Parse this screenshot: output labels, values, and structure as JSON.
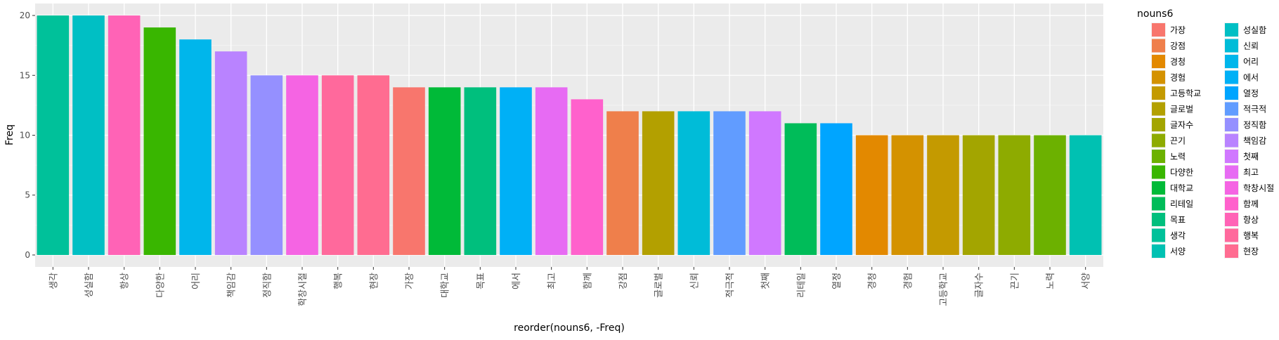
{
  "chart_data": {
    "type": "bar",
    "xlabel": "reorder(nouns6, -Freq)",
    "ylabel": "Freq",
    "ylim": [
      0,
      20
    ],
    "yticks": [
      0,
      5,
      10,
      15,
      20
    ],
    "grid": true,
    "legend_position": "right",
    "categories": [
      "생각",
      "성실함",
      "항상",
      "다양한",
      "어리",
      "책임감",
      "정직함",
      "학창시절",
      "행복",
      "현장",
      "가장",
      "대학교",
      "목표",
      "에서",
      "최고",
      "함께",
      "강점",
      "글로벌",
      "신뢰",
      "적극적",
      "첫째",
      "리테일",
      "열정",
      "경청",
      "경험",
      "고등학교",
      "글자수",
      "끈기",
      "노력",
      "서양"
    ],
    "values": [
      20,
      20,
      20,
      19,
      18,
      17,
      15,
      15,
      15,
      15,
      14,
      14,
      14,
      14,
      14,
      13,
      12,
      12,
      12,
      12,
      12,
      11,
      11,
      10,
      10,
      10,
      10,
      10,
      10,
      10
    ],
    "legend": {
      "title": "nouns6",
      "items": [
        {
          "label": "가장",
          "color": "#F8766D"
        },
        {
          "label": "강점",
          "color": "#EF7F4B"
        },
        {
          "label": "경청",
          "color": "#E38900"
        },
        {
          "label": "경험",
          "color": "#D49200"
        },
        {
          "label": "고등학교",
          "color": "#C49A00"
        },
        {
          "label": "글로벌",
          "color": "#B3A000"
        },
        {
          "label": "글자수",
          "color": "#A3A500"
        },
        {
          "label": "끈기",
          "color": "#8EAB00"
        },
        {
          "label": "노력",
          "color": "#6CB100"
        },
        {
          "label": "다양한",
          "color": "#39B600"
        },
        {
          "label": "대학교",
          "color": "#00BA38"
        },
        {
          "label": "리테일",
          "color": "#00BC59"
        },
        {
          "label": "목표",
          "color": "#00BF7D"
        },
        {
          "label": "생각",
          "color": "#00C19A"
        },
        {
          "label": "서양",
          "color": "#00C1B2"
        },
        {
          "label": "성실함",
          "color": "#00BFC4"
        },
        {
          "label": "신뢰",
          "color": "#00BCD8"
        },
        {
          "label": "어리",
          "color": "#00B6EB"
        },
        {
          "label": "에서",
          "color": "#00B0F6"
        },
        {
          "label": "열정",
          "color": "#00A5FF"
        },
        {
          "label": "적극적",
          "color": "#619CFF"
        },
        {
          "label": "정직함",
          "color": "#9590FF"
        },
        {
          "label": "책임감",
          "color": "#B983FF"
        },
        {
          "label": "첫째",
          "color": "#D078FF"
        },
        {
          "label": "최고",
          "color": "#E76BF3"
        },
        {
          "label": "학창시절",
          "color": "#F564E3"
        },
        {
          "label": "함께",
          "color": "#FF61CC"
        },
        {
          "label": "항상",
          "color": "#FF63B6"
        },
        {
          "label": "행복",
          "color": "#FF699C"
        },
        {
          "label": "현장",
          "color": "#FF6C91"
        }
      ]
    }
  },
  "colors": {
    "panel_background": "#EBEBEB",
    "grid_major": "#FFFFFF",
    "axis_text": "#4D4D4D",
    "title_text": "#000000"
  }
}
